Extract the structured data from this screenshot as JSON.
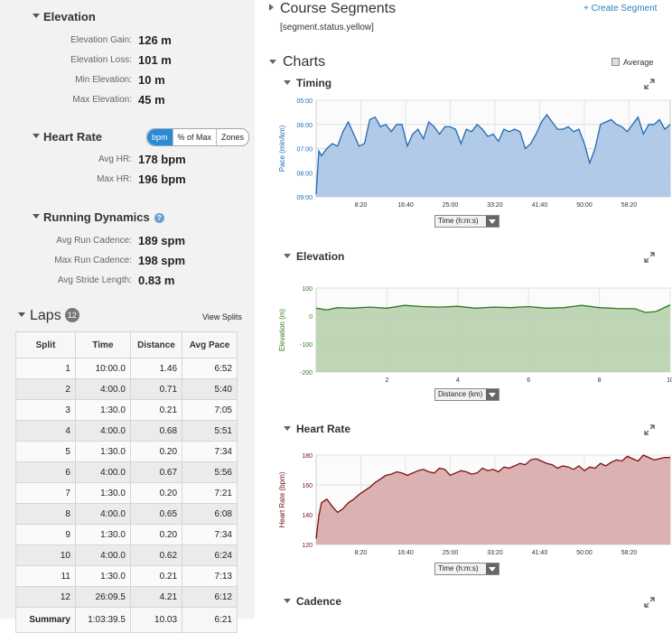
{
  "left": {
    "elevation": {
      "title": "Elevation",
      "rows": [
        {
          "k": "Elevation Gain:",
          "v": "126 m"
        },
        {
          "k": "Elevation Loss:",
          "v": "101 m"
        },
        {
          "k": "Min Elevation:",
          "v": "10 m"
        },
        {
          "k": "Max Elevation:",
          "v": "45 m"
        }
      ]
    },
    "heart_rate": {
      "title": "Heart Rate",
      "toggle": [
        "bpm",
        "% of Max",
        "Zones"
      ],
      "active": "bpm",
      "rows": [
        {
          "k": "Avg HR:",
          "v": "178 bpm"
        },
        {
          "k": "Max HR:",
          "v": "196 bpm"
        }
      ]
    },
    "running": {
      "title": "Running Dynamics",
      "info_icon": "?",
      "rows": [
        {
          "k": "Avg Run Cadence:",
          "v": "189 spm"
        },
        {
          "k": "Max Run Cadence:",
          "v": "198 spm"
        },
        {
          "k": "Avg Stride Length:",
          "v": "0.83 m"
        }
      ]
    },
    "laps": {
      "title": "Laps",
      "count": "12",
      "view_splits": "View Splits",
      "columns": [
        "Split",
        "Time",
        "Distance",
        "Avg Pace"
      ],
      "rows": [
        [
          "1",
          "10:00.0",
          "1.46",
          "6:52"
        ],
        [
          "2",
          "4:00.0",
          "0.71",
          "5:40"
        ],
        [
          "3",
          "1:30.0",
          "0.21",
          "7:05"
        ],
        [
          "4",
          "4:00.0",
          "0.68",
          "5:51"
        ],
        [
          "5",
          "1:30.0",
          "0.20",
          "7:34"
        ],
        [
          "6",
          "4:00.0",
          "0.67",
          "5:56"
        ],
        [
          "7",
          "1:30.0",
          "0.20",
          "7:21"
        ],
        [
          "8",
          "4:00.0",
          "0.65",
          "6:08"
        ],
        [
          "9",
          "1:30.0",
          "0.20",
          "7:34"
        ],
        [
          "10",
          "4:00.0",
          "0.62",
          "6:24"
        ],
        [
          "11",
          "1:30.0",
          "0.21",
          "7:13"
        ],
        [
          "12",
          "26:09.5",
          "4.21",
          "6:12"
        ]
      ],
      "summary": [
        "Summary",
        "1:03:39.5",
        "10.03",
        "6:21"
      ]
    }
  },
  "right": {
    "course_segments": {
      "title": "Course Segments",
      "create": "+ Create Segment",
      "status": "[segment.status.yellow]"
    },
    "charts": {
      "title": "Charts",
      "average_label": "Average"
    },
    "cadence_title": "Cadence"
  },
  "chart_data": [
    {
      "type": "area",
      "title": "Timing",
      "ylabel": "Pace (min/km)",
      "yticks": [
        "05:00",
        "06:00",
        "07:00",
        "08:00",
        "09:00"
      ],
      "ylim": [
        5,
        9
      ],
      "y_inverted": true,
      "xticks": [
        "8:20",
        "16:40",
        "25:00",
        "33:20",
        "41:40",
        "50:00",
        "58:20"
      ],
      "xlim_minutes": [
        0,
        66
      ],
      "x_selector": "Time (h:m:s)",
      "color": "#1e6ab4",
      "fill": "#a9c4e4",
      "x": [
        0,
        0.5,
        1,
        2,
        3,
        4,
        5,
        6,
        7,
        8,
        9,
        10,
        11,
        12,
        13,
        14,
        15,
        16,
        17,
        18,
        19,
        20,
        21,
        22,
        23,
        24,
        25,
        26,
        27,
        28,
        29,
        30,
        31,
        32,
        33,
        34,
        35,
        36,
        37,
        38,
        39,
        40,
        41,
        42,
        43,
        44,
        45,
        46,
        47,
        48,
        49,
        50,
        51,
        52,
        53,
        54,
        55,
        56,
        57,
        58,
        59,
        60,
        61,
        62,
        63,
        64,
        65,
        66
      ],
      "y": [
        8.9,
        7.1,
        7.3,
        7.0,
        6.8,
        6.9,
        6.3,
        5.9,
        6.4,
        6.9,
        6.8,
        5.8,
        5.7,
        6.1,
        6.0,
        6.3,
        6.0,
        6.0,
        6.9,
        6.4,
        6.2,
        6.6,
        5.9,
        6.1,
        6.4,
        6.1,
        6.1,
        6.2,
        6.8,
        6.2,
        6.3,
        6.0,
        6.2,
        6.5,
        6.4,
        6.7,
        6.2,
        6.3,
        6.2,
        6.3,
        7.0,
        6.8,
        6.4,
        5.9,
        5.6,
        5.9,
        6.2,
        6.2,
        6.1,
        6.3,
        6.2,
        6.8,
        7.6,
        7.0,
        6.0,
        5.9,
        5.8,
        6.0,
        6.1,
        6.3,
        6.0,
        5.7,
        6.4,
        6.0,
        6.0,
        5.8,
        6.2,
        6.0
      ]
    },
    {
      "type": "area",
      "title": "Elevation",
      "ylabel": "Elevation (m)",
      "yticks": [
        "100",
        "0",
        "-100",
        "-200"
      ],
      "ylim": [
        -200,
        100
      ],
      "xticks": [
        "2",
        "4",
        "6",
        "8",
        "10"
      ],
      "xlim_km": [
        0,
        10
      ],
      "x_selector": "Distance (km)",
      "color": "#2e7a1e",
      "fill": "#b8d2ae",
      "x": [
        0,
        0.3,
        0.6,
        1,
        1.5,
        2,
        2.5,
        3,
        3.5,
        4,
        4.5,
        5,
        5.5,
        6,
        6.5,
        7,
        7.5,
        8,
        8.5,
        9,
        9.3,
        9.6,
        10
      ],
      "y": [
        28,
        22,
        30,
        28,
        32,
        28,
        38,
        34,
        32,
        35,
        28,
        32,
        30,
        34,
        28,
        30,
        38,
        30,
        27,
        26,
        13,
        16,
        40
      ]
    },
    {
      "type": "area",
      "title": "Heart Rate",
      "ylabel": "Heart Rate (bpm)",
      "yticks": [
        "180",
        "160",
        "140",
        "120"
      ],
      "ylim": [
        120,
        195
      ],
      "xticks": [
        "8:20",
        "16:40",
        "25:00",
        "33:20",
        "41:40",
        "50:00",
        "58:20"
      ],
      "xlim_minutes": [
        0,
        66
      ],
      "x_selector": "Time (h:m:s)",
      "color": "#7a1010",
      "fill": "#d8a8a8",
      "x": [
        0,
        0.5,
        1,
        2,
        3,
        4,
        5,
        6,
        7,
        8,
        9,
        10,
        11,
        12,
        13,
        14,
        15,
        16,
        17,
        18,
        19,
        20,
        21,
        22,
        23,
        24,
        25,
        26,
        27,
        28,
        29,
        30,
        31,
        32,
        33,
        34,
        35,
        36,
        37,
        38,
        39,
        40,
        41,
        42,
        43,
        44,
        45,
        46,
        47,
        48,
        49,
        50,
        51,
        52,
        53,
        54,
        55,
        56,
        57,
        58,
        59,
        60,
        61,
        62,
        63,
        64,
        65,
        66
      ],
      "y": [
        125,
        144,
        155,
        158,
        152,
        147,
        150,
        155,
        158,
        162,
        165,
        168,
        172,
        175,
        178,
        179,
        181,
        180,
        178,
        180,
        182,
        183,
        181,
        180,
        184,
        183,
        178,
        180,
        182,
        181,
        179,
        180,
        184,
        182,
        183,
        181,
        185,
        184,
        186,
        188,
        187,
        191,
        192,
        190,
        188,
        187,
        184,
        186,
        185,
        183,
        186,
        182,
        185,
        184,
        188,
        186,
        189,
        191,
        190,
        194,
        192,
        190,
        195,
        193,
        191,
        192,
        193,
        193
      ]
    }
  ]
}
